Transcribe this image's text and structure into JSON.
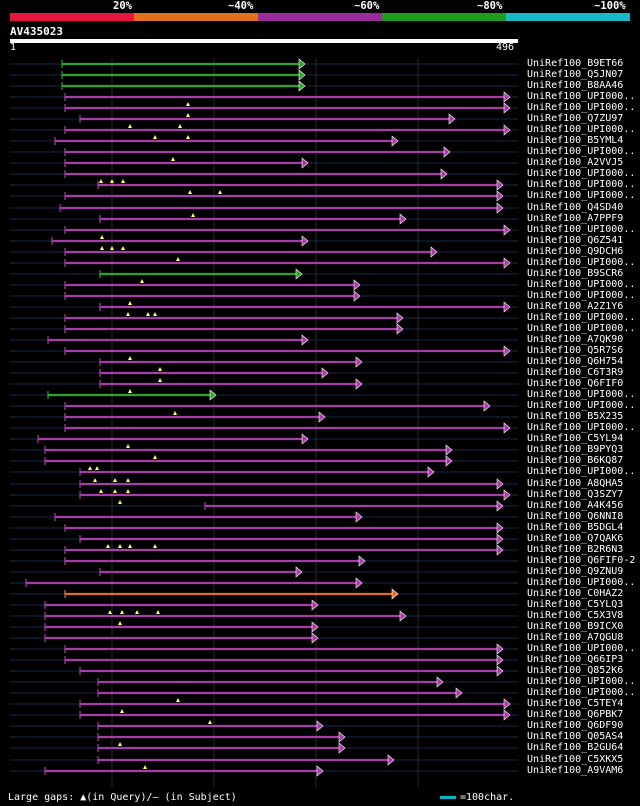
{
  "legend": {
    "labels": [
      "20%",
      "~40%",
      "~60%",
      "~80%",
      "~100%"
    ],
    "colors": [
      "#e8163c",
      "#e2701e",
      "#9c2c9c",
      "#1e9c1e",
      "#18b8c8"
    ]
  },
  "query": {
    "id": "AV435023",
    "start": "1",
    "end": "496"
  },
  "hits": [
    {
      "label": "UniRef100_B9ET66",
      "color": "#2aa52a"
    },
    {
      "label": "UniRef100_Q5JN07",
      "color": "#2aa52a"
    },
    {
      "label": "UniRef100_B8AA46",
      "color": "#2aa52a"
    },
    {
      "label": "UniRef100_UPI000..",
      "color": "#a83ca8"
    },
    {
      "label": "UniRef100_UPI000..",
      "color": "#a83ca8"
    },
    {
      "label": "UniRef100_Q7ZU97",
      "color": "#a83ca8"
    },
    {
      "label": "UniRef100_UPI000..",
      "color": "#a83ca8"
    },
    {
      "label": "UniRef100_B5YML4",
      "color": "#a83ca8"
    },
    {
      "label": "UniRef100_UPI000..",
      "color": "#a83ca8"
    },
    {
      "label": "UniRef100_A2VVJ5",
      "color": "#a83ca8"
    },
    {
      "label": "UniRef100_UPI000..",
      "color": "#a83ca8"
    },
    {
      "label": "UniRef100_UPI000..",
      "color": "#a83ca8"
    },
    {
      "label": "UniRef100_UPI000..",
      "color": "#a83ca8"
    },
    {
      "label": "UniRef100_Q4SD40",
      "color": "#a83ca8"
    },
    {
      "label": "UniRef100_A7PPF9",
      "color": "#a83ca8"
    },
    {
      "label": "UniRef100_UPI000..",
      "color": "#a83ca8"
    },
    {
      "label": "UniRef100_Q6Z541",
      "color": "#a83ca8"
    },
    {
      "label": "UniRef100_Q9DCH6",
      "color": "#a83ca8"
    },
    {
      "label": "UniRef100_UPI000..",
      "color": "#a83ca8"
    },
    {
      "label": "UniRef100_B9SCR6",
      "color": "#2aa52a"
    },
    {
      "label": "UniRef100_UPI000..",
      "color": "#a83ca8"
    },
    {
      "label": "UniRef100_UPI000..",
      "color": "#a83ca8"
    },
    {
      "label": "UniRef100_A2Z1Y6",
      "color": "#a83ca8"
    },
    {
      "label": "UniRef100_UPI000..",
      "color": "#a83ca8"
    },
    {
      "label": "UniRef100_UPI000..",
      "color": "#a83ca8"
    },
    {
      "label": "UniRef100_A7QK90",
      "color": "#a83ca8"
    },
    {
      "label": "UniRef100_Q5R7S6",
      "color": "#a83ca8"
    },
    {
      "label": "UniRef100_Q6H754",
      "color": "#a83ca8"
    },
    {
      "label": "UniRef100_C6T3R9",
      "color": "#a83ca8"
    },
    {
      "label": "UniRef100_Q6FIF0",
      "color": "#a83ca8"
    },
    {
      "label": "UniRef100_UPI000..",
      "color": "#2aa52a"
    },
    {
      "label": "UniRef100_UPI000..",
      "color": "#a83ca8"
    },
    {
      "label": "UniRef100_B5X235",
      "color": "#a83ca8"
    },
    {
      "label": "UniRef100_UPI000..",
      "color": "#a83ca8"
    },
    {
      "label": "UniRef100_C5YL94",
      "color": "#a83ca8"
    },
    {
      "label": "UniRef100_B9PYQ3",
      "color": "#a83ca8"
    },
    {
      "label": "UniRef100_B6KQ87",
      "color": "#a83ca8"
    },
    {
      "label": "UniRef100_UPI000..",
      "color": "#a83ca8"
    },
    {
      "label": "UniRef100_A8QHA5",
      "color": "#a83ca8"
    },
    {
      "label": "UniRef100_Q3SZY7",
      "color": "#a83ca8"
    },
    {
      "label": "UniRef100_A4K456",
      "color": "#a83ca8"
    },
    {
      "label": "UniRef100_Q6NNI8",
      "color": "#a83ca8"
    },
    {
      "label": "UniRef100_B5DGL4",
      "color": "#a83ca8"
    },
    {
      "label": "UniRef100_Q7QAK6",
      "color": "#a83ca8"
    },
    {
      "label": "UniRef100_B2R6N3",
      "color": "#a83ca8"
    },
    {
      "label": "UniRef100_Q6FIF0-2",
      "color": "#a83ca8"
    },
    {
      "label": "UniRef100_Q9ZNU9",
      "color": "#a83ca8"
    },
    {
      "label": "UniRef100_UPI000..",
      "color": "#a83ca8"
    },
    {
      "label": "UniRef100_C0HAZ2",
      "color": "#e2701e"
    },
    {
      "label": "UniRef100_C5YLQ3",
      "color": "#a83ca8"
    },
    {
      "label": "UniRef100_C5X3V8",
      "color": "#a83ca8"
    },
    {
      "label": "UniRef100_B9ICX0",
      "color": "#a83ca8"
    },
    {
      "label": "UniRef100_A7QGU8",
      "color": "#a83ca8"
    },
    {
      "label": "UniRef100_UPI000..",
      "color": "#a83ca8"
    },
    {
      "label": "UniRef100_Q66IP3",
      "color": "#a83ca8"
    },
    {
      "label": "UniRef100_Q852K6",
      "color": "#a83ca8"
    },
    {
      "label": "UniRef100_UPI000..",
      "color": "#a83ca8"
    },
    {
      "label": "UniRef100_UPI000..",
      "color": "#a83ca8"
    },
    {
      "label": "UniRef100_C5TEY4",
      "color": "#a83ca8"
    },
    {
      "label": "UniRef100_Q6PBK7",
      "color": "#a83ca8"
    },
    {
      "label": "UniRef100_Q6DF90",
      "color": "#a83ca8"
    },
    {
      "label": "UniRef100_Q05AS4",
      "color": "#a83ca8"
    },
    {
      "label": "UniRef100_B2GU64",
      "color": "#a83ca8"
    },
    {
      "label": "UniRef100_C5XKX5",
      "color": "#a83ca8"
    },
    {
      "label": "UniRef100_A9VAM6",
      "color": "#a83ca8"
    }
  ],
  "footer": {
    "note": "Large gaps: ▲(in Query)/– (in Subject)",
    "scale": "=100char."
  }
}
